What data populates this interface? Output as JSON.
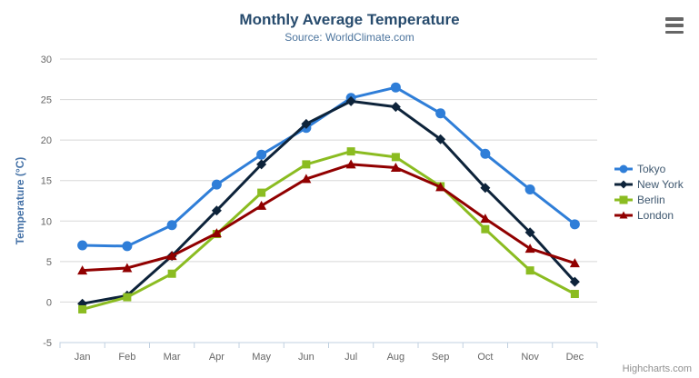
{
  "chart_data": {
    "type": "line",
    "title": "Monthly Average Temperature",
    "subtitle": "Source: WorldClimate.com",
    "categories": [
      "Jan",
      "Feb",
      "Mar",
      "Apr",
      "May",
      "Jun",
      "Jul",
      "Aug",
      "Sep",
      "Oct",
      "Nov",
      "Dec"
    ],
    "xlabel": "",
    "ylabel": "Temperature (°C)",
    "ylim": [
      -5,
      30
    ],
    "yticks": [
      -5,
      0,
      5,
      10,
      15,
      20,
      25,
      30
    ],
    "grid": true,
    "legend_position": "right",
    "series": [
      {
        "name": "Tokyo",
        "color": "#2f7ed8",
        "marker": "circle",
        "values": [
          7.0,
          6.9,
          9.5,
          14.5,
          18.2,
          21.5,
          25.2,
          26.5,
          23.3,
          18.3,
          13.9,
          9.6
        ]
      },
      {
        "name": "New York",
        "color": "#0d233a",
        "marker": "diamond",
        "values": [
          -0.2,
          0.8,
          5.7,
          11.3,
          17.0,
          22.0,
          24.8,
          24.1,
          20.1,
          14.1,
          8.6,
          2.5
        ]
      },
      {
        "name": "Berlin",
        "color": "#8bbc21",
        "marker": "square",
        "values": [
          -0.9,
          0.6,
          3.5,
          8.4,
          13.5,
          17.0,
          18.6,
          17.9,
          14.3,
          9.0,
          3.9,
          1.0
        ]
      },
      {
        "name": "London",
        "color": "#910000",
        "marker": "triangle",
        "values": [
          3.9,
          4.2,
          5.7,
          8.5,
          11.9,
          15.2,
          17.0,
          16.6,
          14.2,
          10.3,
          6.6,
          4.8
        ]
      }
    ]
  },
  "colors": {
    "title": "#274b6d",
    "subtitle": "#4d759e",
    "y_axis_title": "#4572a7",
    "axis_labels": "#666666",
    "gridline": "#d8d8d8",
    "axis_line": "#c0d0e0",
    "credits": "#909090",
    "menu_icon": "#666666"
  },
  "icons": {
    "context_menu": "hamburger-menu"
  },
  "credits": {
    "label": "Highcharts.com"
  }
}
